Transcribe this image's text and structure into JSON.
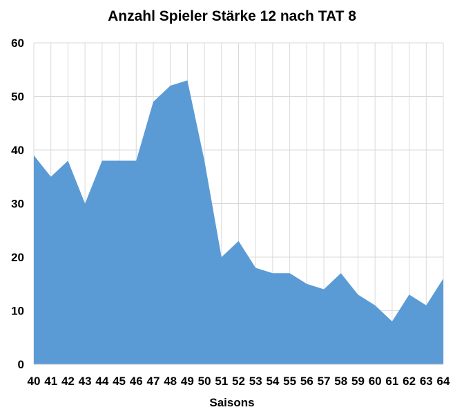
{
  "chart_data": {
    "type": "area",
    "title": "Anzahl Spieler Stärke 12 nach TAT 8",
    "xlabel": "Saisons",
    "ylabel": "",
    "categories": [
      "40",
      "41",
      "42",
      "43",
      "44",
      "45",
      "46",
      "47",
      "48",
      "49",
      "50",
      "51",
      "52",
      "53",
      "54",
      "55",
      "56",
      "57",
      "58",
      "59",
      "60",
      "61",
      "62",
      "63",
      "64"
    ],
    "series": [
      {
        "values": [
          39,
          35,
          38,
          30,
          38,
          38,
          38,
          49,
          52,
          53,
          38,
          20,
          23,
          18,
          17,
          17,
          15,
          14,
          17,
          13,
          11,
          8,
          13,
          11,
          16
        ]
      }
    ],
    "ylim": [
      0,
      60
    ],
    "yticks": [
      0,
      10,
      20,
      30,
      40,
      50,
      60
    ],
    "grid": true,
    "legend": "none",
    "colors": {
      "area": "#5b9bd5",
      "grid": "#d9d9d9",
      "axis": "#bfbfbf"
    }
  }
}
